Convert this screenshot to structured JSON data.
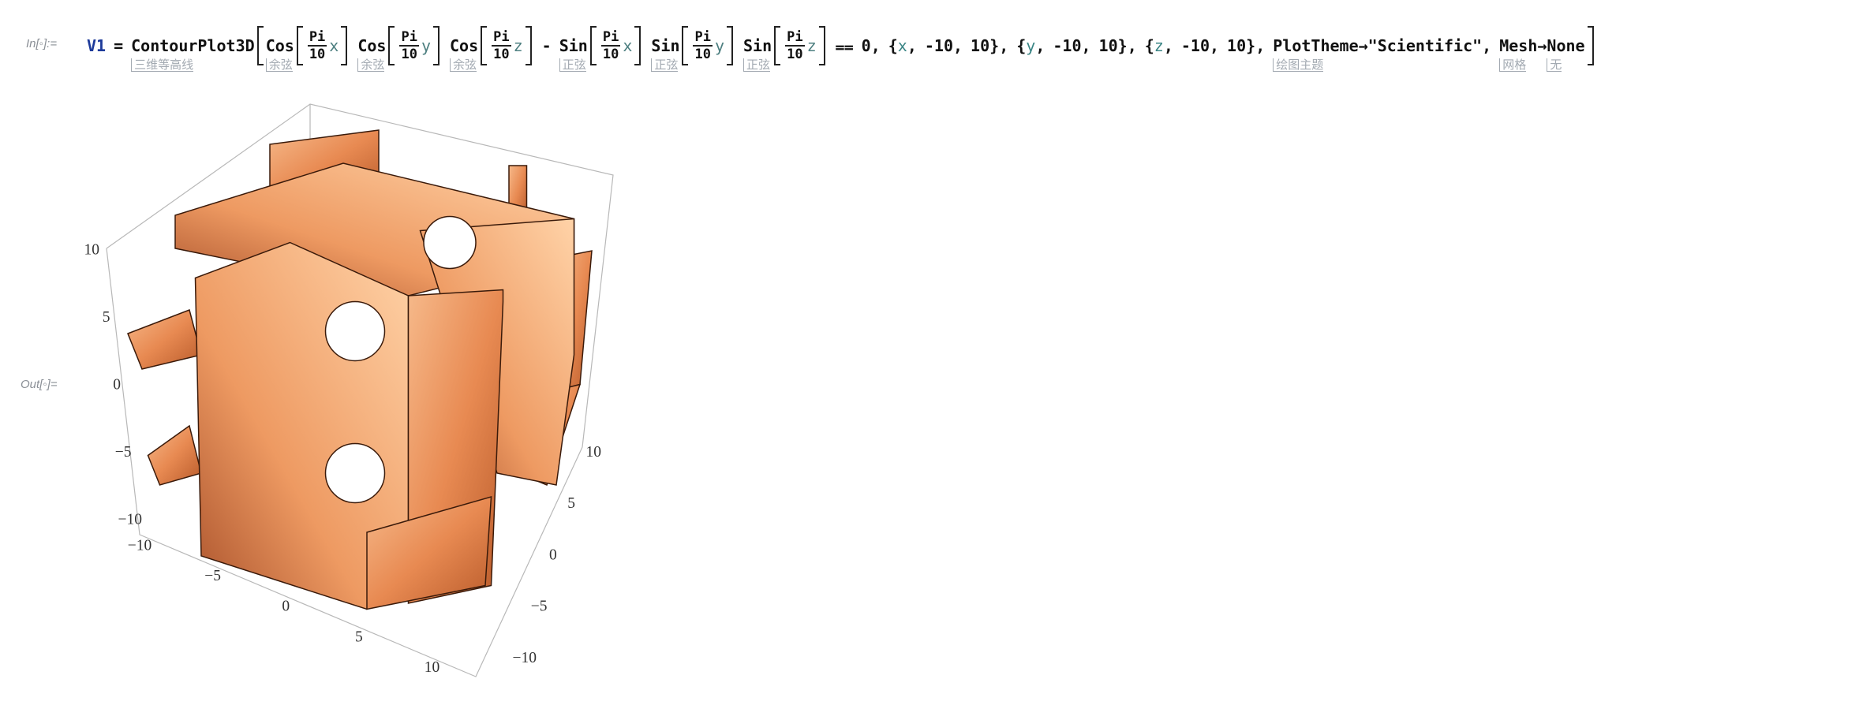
{
  "cell_input": {
    "prompt": "In[◦]:=",
    "variable": "V1",
    "assign": "=",
    "head": "ContourPlot3D",
    "head_note": "三维等高线",
    "factors": [
      {
        "func": "Cos",
        "numerator": "Pi",
        "denominator": "10",
        "var": "x",
        "note": "余弦"
      },
      {
        "func": "Cos",
        "numerator": "Pi",
        "denominator": "10",
        "var": "y",
        "note": "余弦"
      },
      {
        "func": "Cos",
        "numerator": "Pi",
        "denominator": "10",
        "var": "z",
        "note": "余弦"
      },
      {
        "func": "Sin",
        "numerator": "Pi",
        "denominator": "10",
        "var": "x",
        "note": "正弦"
      },
      {
        "func": "Sin",
        "numerator": "Pi",
        "denominator": "10",
        "var": "y",
        "note": "正弦"
      },
      {
        "func": "Sin",
        "numerator": "Pi",
        "denominator": "10",
        "var": "z",
        "note": "正弦"
      }
    ],
    "minus": "-",
    "equal": "⩵",
    "rhs": "0",
    "comma": ",",
    "brace_open": "{",
    "brace_close": "}",
    "ranges": [
      {
        "var": "x",
        "min": "-10",
        "max": "10"
      },
      {
        "var": "y",
        "min": "-10",
        "max": "10"
      },
      {
        "var": "z",
        "min": "-10",
        "max": "10"
      }
    ],
    "options": [
      {
        "name": "PlotTheme",
        "arrow": "→",
        "value": "\"Scientific\"",
        "name_note": "绘图主题"
      },
      {
        "name": "Mesh",
        "arrow": "→",
        "value": "None",
        "name_note": "网格",
        "value_note": "无"
      }
    ]
  },
  "cell_output": {
    "prompt": "Out[◦]=",
    "z_ticks": [
      "10",
      "5",
      "0",
      "−5",
      "−10"
    ],
    "x_ticks": [
      "−10",
      "−5",
      "0",
      "5",
      "10"
    ],
    "y_ticks": [
      "10",
      "5",
      "0",
      "−5",
      "−10"
    ]
  }
}
